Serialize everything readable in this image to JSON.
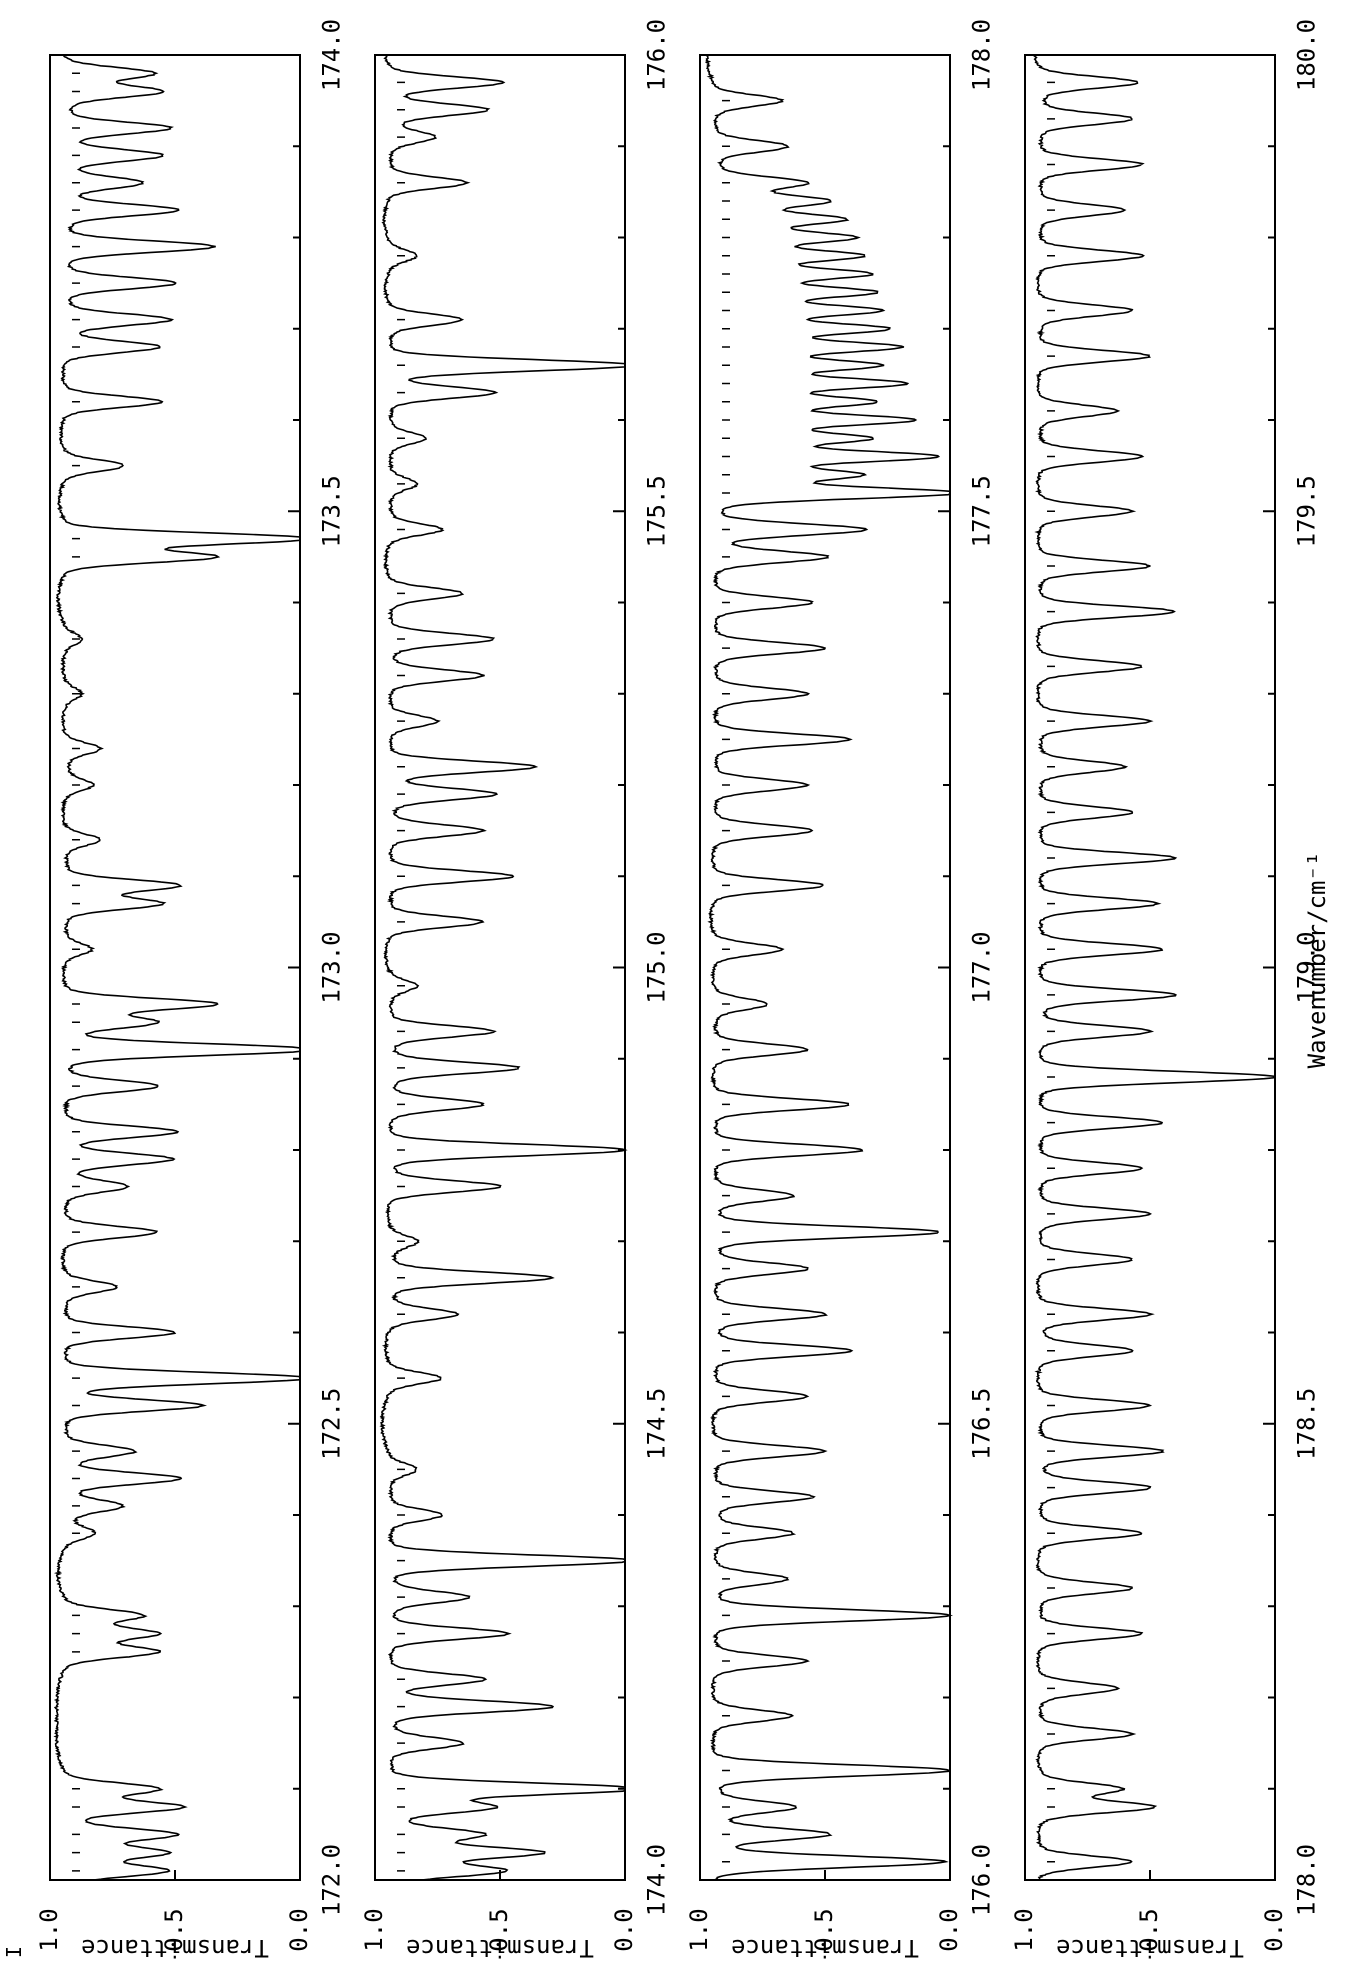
{
  "figure": {
    "orientation": "rotated 90 degrees clockwise",
    "line_color": "#000000",
    "background": "#ffffff",
    "marker_text": "I"
  },
  "chart_data": [
    {
      "type": "line",
      "xlabel": "",
      "ylabel": "Transmittance",
      "xlim": [
        172.0,
        174.0
      ],
      "ylim": [
        0.0,
        1.0
      ],
      "x_tick_labels": [
        "172.0",
        "172.5",
        "173.0",
        "173.5",
        "174.0"
      ],
      "y_tick_labels": [
        "0.0",
        "0.5",
        "1.0"
      ],
      "x_major_ticks": [
        172.0,
        172.5,
        173.0,
        173.5,
        174.0
      ],
      "grid": false,
      "baseline": 0.98,
      "series": [
        {
          "absorption_lines": [
            [
              172.01,
              0.6
            ],
            [
              172.03,
              0.62
            ],
            [
              172.05,
              0.58
            ],
            [
              172.08,
              0.55
            ],
            [
              172.1,
              0.63
            ],
            [
              172.25,
              0.64
            ],
            [
              172.27,
              0.66
            ],
            [
              172.29,
              0.7
            ],
            [
              172.38,
              0.88
            ],
            [
              172.41,
              0.78
            ],
            [
              172.44,
              0.55
            ],
            [
              172.47,
              0.72
            ],
            [
              172.52,
              0.45
            ],
            [
              172.55,
              0.02
            ],
            [
              172.6,
              0.55
            ],
            [
              172.65,
              0.78
            ],
            [
              172.71,
              0.62
            ],
            [
              172.76,
              0.75
            ],
            [
              172.79,
              0.58
            ],
            [
              172.82,
              0.55
            ],
            [
              172.87,
              0.62
            ],
            [
              172.91,
              0.0
            ],
            [
              172.94,
              0.65
            ],
            [
              172.96,
              0.4
            ],
            [
              173.02,
              0.88
            ],
            [
              173.07,
              0.62
            ],
            [
              173.09,
              0.55
            ],
            [
              173.14,
              0.85
            ],
            [
              173.2,
              0.88
            ],
            [
              173.24,
              0.85
            ],
            [
              173.3,
              0.92
            ],
            [
              173.36,
              0.92
            ],
            [
              173.45,
              0.4
            ],
            [
              173.47,
              0.02
            ],
            [
              173.55,
              0.75
            ],
            [
              173.62,
              0.6
            ],
            [
              173.68,
              0.62
            ],
            [
              173.71,
              0.58
            ],
            [
              173.75,
              0.55
            ],
            [
              173.79,
              0.4
            ],
            [
              173.83,
              0.55
            ],
            [
              173.86,
              0.7
            ],
            [
              173.89,
              0.62
            ],
            [
              173.92,
              0.58
            ],
            [
              173.96,
              0.62
            ],
            [
              173.98,
              0.65
            ]
          ]
        }
      ]
    },
    {
      "type": "line",
      "xlabel": "",
      "ylabel": "Transmittance",
      "xlim": [
        174.0,
        176.0
      ],
      "ylim": [
        0.0,
        1.0
      ],
      "x_tick_labels": [
        "174.0",
        "174.5",
        "175.0",
        "175.5",
        "176.0"
      ],
      "y_tick_labels": [
        "0.0",
        "0.5",
        "1.0"
      ],
      "x_major_ticks": [
        174.0,
        174.5,
        175.0,
        175.5,
        176.0
      ],
      "grid": false,
      "baseline": 0.98,
      "series": [
        {
          "absorption_lines": [
            [
              174.01,
              0.55
            ],
            [
              174.03,
              0.42
            ],
            [
              174.05,
              0.65
            ],
            [
              174.08,
              0.6
            ],
            [
              174.1,
              0.0
            ],
            [
              174.15,
              0.7
            ],
            [
              174.19,
              0.35
            ],
            [
              174.22,
              0.62
            ],
            [
              174.27,
              0.52
            ],
            [
              174.31,
              0.68
            ],
            [
              174.35,
              0.02
            ],
            [
              174.4,
              0.78
            ],
            [
              174.45,
              0.88
            ],
            [
              174.55,
              0.78
            ],
            [
              174.62,
              0.72
            ],
            [
              174.66,
              0.35
            ],
            [
              174.7,
              0.88
            ],
            [
              174.76,
              0.55
            ],
            [
              174.8,
              0.05
            ],
            [
              174.85,
              0.62
            ],
            [
              174.89,
              0.48
            ],
            [
              174.93,
              0.58
            ],
            [
              174.98,
              0.88
            ],
            [
              175.05,
              0.62
            ],
            [
              175.1,
              0.5
            ],
            [
              175.15,
              0.62
            ],
            [
              175.19,
              0.58
            ],
            [
              175.22,
              0.42
            ],
            [
              175.27,
              0.8
            ],
            [
              175.32,
              0.62
            ],
            [
              175.36,
              0.58
            ],
            [
              175.41,
              0.7
            ],
            [
              175.48,
              0.78
            ],
            [
              175.53,
              0.88
            ],
            [
              175.58,
              0.85
            ],
            [
              175.63,
              0.58
            ],
            [
              175.66,
              0.02
            ],
            [
              175.71,
              0.7
            ],
            [
              175.78,
              0.88
            ],
            [
              175.86,
              0.68
            ],
            [
              175.91,
              0.82
            ],
            [
              175.94,
              0.62
            ],
            [
              175.97,
              0.55
            ]
          ]
        }
      ]
    },
    {
      "type": "line",
      "xlabel": "",
      "ylabel": "Transmittance",
      "xlim": [
        176.0,
        178.0
      ],
      "ylim": [
        0.0,
        1.0
      ],
      "x_tick_labels": [
        "176.0",
        "176.5",
        "177.0",
        "177.5",
        "178.0"
      ],
      "y_tick_labels": [
        "0.0",
        "0.5",
        "1.0"
      ],
      "x_major_ticks": [
        176.0,
        176.5,
        177.0,
        177.5,
        178.0
      ],
      "grid": false,
      "baseline": 0.98,
      "series": [
        {
          "absorption_lines": [
            [
              176.02,
              0.08
            ],
            [
              176.05,
              0.55
            ],
            [
              176.08,
              0.68
            ],
            [
              176.12,
              0.05
            ],
            [
              176.18,
              0.68
            ],
            [
              176.24,
              0.62
            ],
            [
              176.29,
              0.05
            ],
            [
              176.33,
              0.7
            ],
            [
              176.38,
              0.68
            ],
            [
              176.42,
              0.6
            ],
            [
              176.47,
              0.55
            ],
            [
              176.53,
              0.62
            ],
            [
              176.58,
              0.45
            ],
            [
              176.62,
              0.55
            ],
            [
              176.67,
              0.62
            ],
            [
              176.71,
              0.1
            ],
            [
              176.75,
              0.68
            ],
            [
              176.8,
              0.4
            ],
            [
              176.85,
              0.45
            ],
            [
              176.91,
              0.62
            ],
            [
              176.96,
              0.78
            ],
            [
              177.02,
              0.72
            ],
            [
              177.09,
              0.55
            ],
            [
              177.15,
              0.6
            ],
            [
              177.2,
              0.62
            ],
            [
              177.25,
              0.45
            ],
            [
              177.3,
              0.62
            ],
            [
              177.35,
              0.55
            ],
            [
              177.4,
              0.6
            ],
            [
              177.45,
              0.55
            ],
            [
              177.48,
              0.4
            ],
            [
              177.52,
              0.05
            ],
            [
              177.54,
              0.45
            ],
            [
              177.56,
              0.15
            ],
            [
              177.58,
              0.42
            ],
            [
              177.6,
              0.25
            ],
            [
              177.62,
              0.4
            ],
            [
              177.64,
              0.28
            ],
            [
              177.66,
              0.38
            ],
            [
              177.68,
              0.3
            ],
            [
              177.7,
              0.35
            ],
            [
              177.72,
              0.38
            ],
            [
              177.74,
              0.4
            ],
            [
              177.76,
              0.42
            ],
            [
              177.78,
              0.45
            ],
            [
              177.8,
              0.48
            ],
            [
              177.82,
              0.52
            ],
            [
              177.84,
              0.58
            ],
            [
              177.86,
              0.65
            ],
            [
              177.9,
              0.7
            ],
            [
              177.95,
              0.72
            ]
          ]
        }
      ]
    },
    {
      "type": "line",
      "xlabel": "Wavenumber/cm⁻¹",
      "ylabel": "Transmittance",
      "xlim": [
        178.0,
        180.0
      ],
      "ylim": [
        0.0,
        1.0
      ],
      "x_tick_labels": [
        "178.0",
        "178.5",
        "179.0",
        "179.5",
        "180.0"
      ],
      "y_tick_labels": [
        "0.0",
        "0.5",
        "1.0"
      ],
      "x_major_ticks": [
        178.0,
        178.5,
        179.0,
        179.5,
        180.0
      ],
      "grid": false,
      "baseline": 0.98,
      "series": [
        {
          "absorption_lines": [
            [
              178.02,
              0.62
            ],
            [
              178.08,
              0.55
            ],
            [
              178.1,
              0.68
            ],
            [
              178.16,
              0.62
            ],
            [
              178.21,
              0.68
            ],
            [
              178.27,
              0.58
            ],
            [
              178.32,
              0.62
            ],
            [
              178.38,
              0.58
            ],
            [
              178.43,
              0.55
            ],
            [
              178.47,
              0.5
            ],
            [
              178.52,
              0.55
            ],
            [
              178.58,
              0.62
            ],
            [
              178.62,
              0.55
            ],
            [
              178.68,
              0.62
            ],
            [
              178.73,
              0.55
            ],
            [
              178.78,
              0.58
            ],
            [
              178.83,
              0.5
            ],
            [
              178.88,
              0.05
            ],
            [
              178.93,
              0.55
            ],
            [
              178.97,
              0.45
            ],
            [
              179.02,
              0.5
            ],
            [
              179.07,
              0.52
            ],
            [
              179.12,
              0.45
            ],
            [
              179.17,
              0.62
            ],
            [
              179.22,
              0.65
            ],
            [
              179.27,
              0.55
            ],
            [
              179.33,
              0.58
            ],
            [
              179.39,
              0.45
            ],
            [
              179.44,
              0.55
            ],
            [
              179.5,
              0.62
            ],
            [
              179.56,
              0.58
            ],
            [
              179.61,
              0.68
            ],
            [
              179.67,
              0.55
            ],
            [
              179.72,
              0.62
            ],
            [
              179.78,
              0.58
            ],
            [
              179.83,
              0.65
            ],
            [
              179.88,
              0.58
            ],
            [
              179.93,
              0.62
            ],
            [
              179.97,
              0.6
            ]
          ]
        }
      ]
    }
  ]
}
